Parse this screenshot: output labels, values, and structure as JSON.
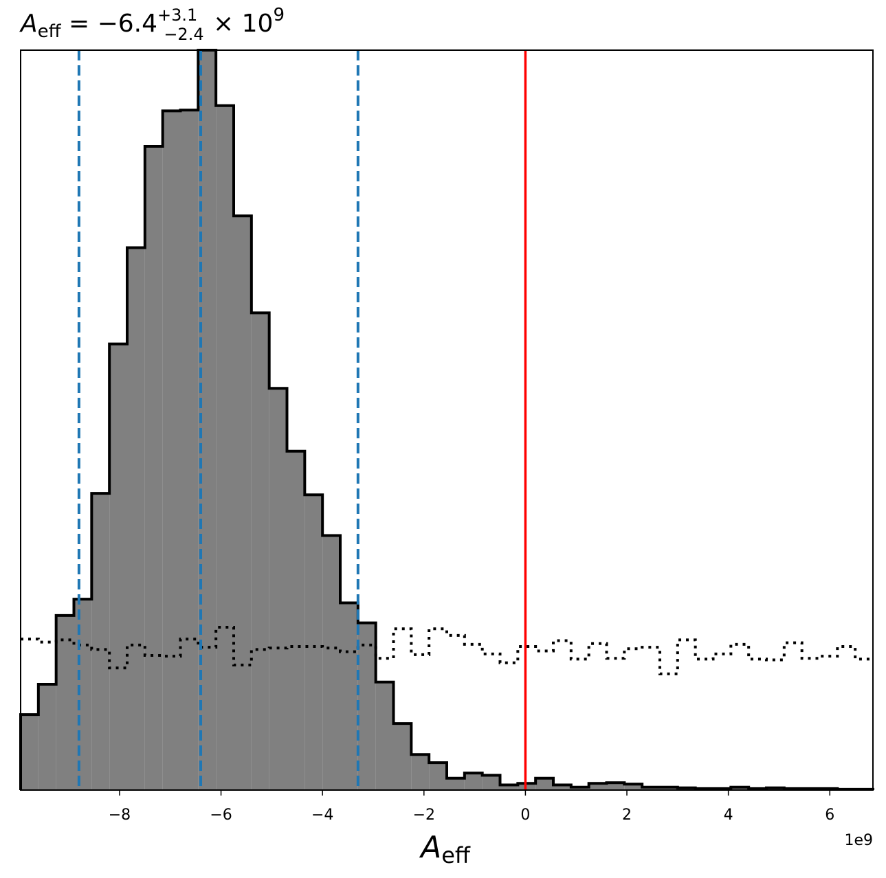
{
  "chart_data": {
    "type": "histogram",
    "title": {
      "lhs": "A",
      "lhs_sub": "eff",
      "equals": " = −6.4",
      "sup": "+3.1",
      "sub": "−2.4",
      "times": " × 10",
      "exp": "9"
    },
    "xlabel": {
      "main": "A",
      "sub": "eff"
    },
    "x_offset_label": "1e9",
    "x_unit": 1000000000,
    "xlim": [
      -9.95,
      6.85
    ],
    "ylim": [
      0,
      1.0
    ],
    "xticks": [
      -8,
      -6,
      -4,
      -2,
      0,
      2,
      4,
      6
    ],
    "xtick_labels": [
      "−8",
      "−6",
      "−4",
      "−2",
      "0",
      "2",
      "4",
      "6"
    ],
    "bins": {
      "start": -9.95,
      "width": 0.35,
      "count": 48
    },
    "posterior": {
      "fill": "#808080",
      "edge": "#000000",
      "heights": [
        0.102,
        0.143,
        0.236,
        0.258,
        0.401,
        0.603,
        0.733,
        0.87,
        0.918,
        0.919,
        1.0,
        0.925,
        0.776,
        0.645,
        0.543,
        0.458,
        0.399,
        0.344,
        0.253,
        0.226,
        0.146,
        0.09,
        0.048,
        0.037,
        0.016,
        0.023,
        0.02,
        0.007,
        0.009,
        0.016,
        0.007,
        0.004,
        0.009,
        0.01,
        0.008,
        0.004,
        0.004,
        0.003,
        0.002,
        0.002,
        0.004,
        0.002,
        0.003,
        0.002,
        0.002,
        0.002,
        0.001,
        0.001
      ]
    },
    "prior": {
      "style": "dotted",
      "color": "#000000",
      "heights": [
        0.204,
        0.2,
        0.203,
        0.196,
        0.19,
        0.165,
        0.196,
        0.182,
        0.181,
        0.204,
        0.193,
        0.22,
        0.169,
        0.19,
        0.192,
        0.194,
        0.194,
        0.192,
        0.187,
        0.196,
        0.178,
        0.218,
        0.183,
        0.218,
        0.209,
        0.197,
        0.184,
        0.172,
        0.194,
        0.188,
        0.202,
        0.177,
        0.198,
        0.178,
        0.191,
        0.193,
        0.157,
        0.203,
        0.177,
        0.184,
        0.197,
        0.177,
        0.176,
        0.199,
        0.178,
        0.181,
        0.194,
        0.177
      ]
    },
    "quantile_lines": {
      "color": "#1f77b4",
      "style": "dashed",
      "x": [
        -8.8,
        -6.4,
        -3.3
      ]
    },
    "reference_line": {
      "color": "#ff0000",
      "x": 0
    },
    "grid": false,
    "legend": false
  }
}
